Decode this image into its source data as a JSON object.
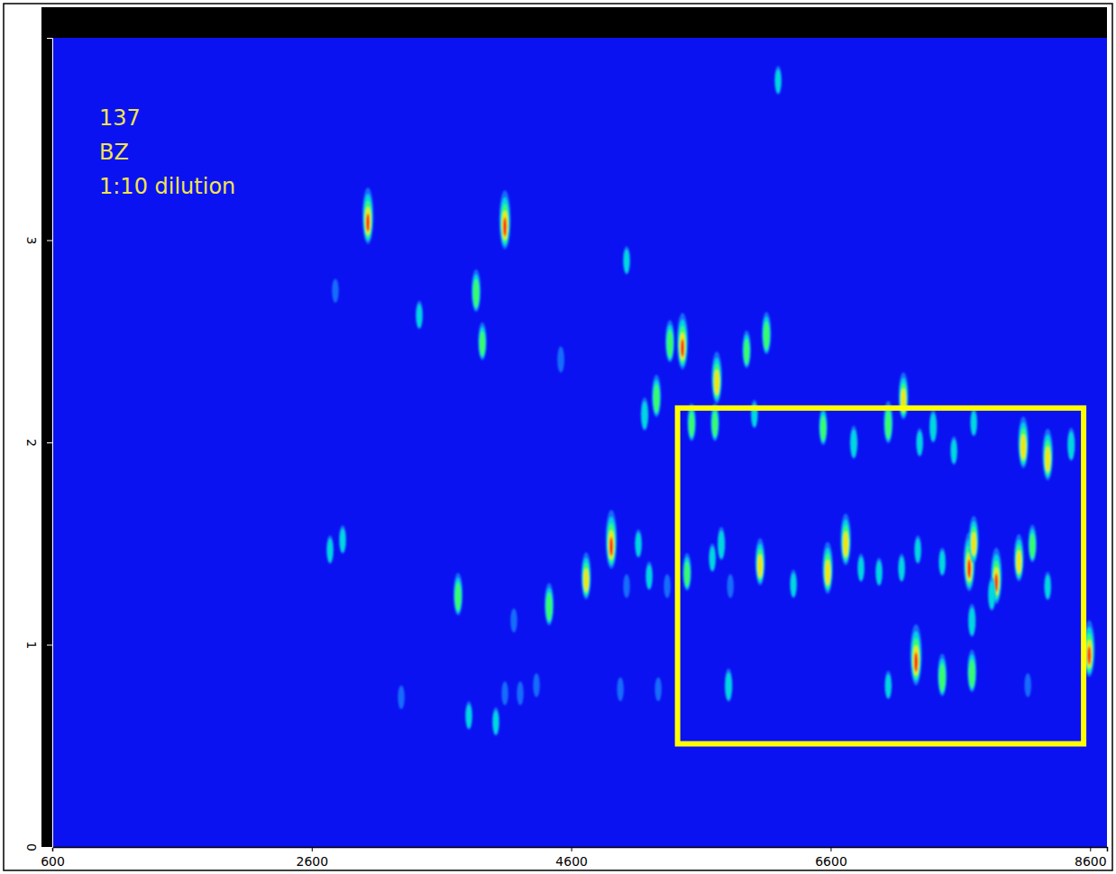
{
  "chart_data": {
    "type": "scatter",
    "annotations": [
      "137",
      "BZ",
      "1:10 dilution"
    ],
    "x": [
      3033,
      4089,
      3867,
      3915,
      3429,
      2782,
      5027,
      6195,
      4520,
      5361,
      5458,
      5257,
      5166,
      5722,
      5952,
      6105,
      7161,
      6542,
      6778,
      7044,
      7390,
      7286,
      8085,
      8273,
      8454,
      5528,
      5708,
      6012,
      7550,
      7703,
      2741,
      2838,
      3728,
      4430,
      4158,
      4715,
      4909,
      5118,
      5201,
      5027,
      5340,
      5493,
      5688,
      5757,
      6056,
      6313,
      6577,
      6716,
      6834,
      6973,
      7147,
      7272,
      7460,
      7668,
      7703,
      7877,
      8051,
      8155,
      8273,
      7842,
      5827,
      7258,
      7460,
      7689,
      7689,
      8593,
      5813,
      7044,
      8120,
      3290,
      3811,
      4019,
      4089,
      4207,
      4332,
      4979,
      5271
    ],
    "y": [
      3.12,
      3.1,
      2.75,
      2.5,
      2.63,
      2.75,
      2.9,
      3.79,
      2.41,
      2.5,
      2.5,
      2.23,
      2.14,
      2.32,
      2.46,
      2.54,
      2.23,
      2.08,
      2.0,
      2.1,
      2.08,
      2.0,
      2.0,
      1.94,
      1.99,
      2.1,
      2.1,
      2.14,
      1.96,
      2.1,
      1.47,
      1.52,
      1.25,
      1.2,
      1.12,
      1.34,
      1.52,
      1.5,
      1.34,
      1.29,
      1.29,
      1.36,
      1.43,
      1.5,
      1.41,
      1.3,
      1.38,
      1.52,
      1.38,
      1.36,
      1.38,
      1.47,
      1.41,
      1.41,
      1.52,
      1.34,
      1.43,
      1.5,
      1.29,
      1.25,
      1.29,
      0.95,
      0.85,
      0.87,
      1.12,
      0.98,
      0.8,
      0.8,
      0.8,
      0.74,
      0.65,
      0.62,
      0.76,
      0.76,
      0.8,
      0.78,
      0.78
    ],
    "z": [
      0.9,
      0.95,
      0.6,
      0.5,
      0.3,
      0.2,
      0.3,
      0.3,
      0.25,
      0.6,
      0.9,
      0.6,
      0.4,
      0.8,
      0.5,
      0.6,
      0.7,
      0.5,
      0.4,
      0.6,
      0.4,
      0.3,
      0.8,
      0.8,
      0.4,
      0.5,
      0.5,
      0.3,
      0.3,
      0.3,
      0.3,
      0.3,
      0.6,
      0.6,
      0.2,
      0.7,
      0.95,
      0.3,
      0.3,
      0.2,
      0.2,
      0.5,
      0.3,
      0.4,
      0.7,
      0.3,
      0.8,
      0.8,
      0.3,
      0.3,
      0.3,
      0.3,
      0.3,
      0.95,
      0.7,
      0.9,
      0.7,
      0.5,
      0.3,
      0.4,
      0.2,
      1.0,
      0.6,
      0.6,
      0.4,
      0.9,
      0.4,
      0.3,
      0.2,
      0.2,
      0.3,
      0.3,
      0.2,
      0.2,
      0.2,
      0.2,
      0.2
    ],
    "zlim": [
      0,
      1
    ],
    "xlim": [
      600,
      8730
    ],
    "ylim": [
      0,
      4.0
    ],
    "xticks": [
      600,
      2600,
      4600,
      6600,
      8600
    ],
    "yticks": [
      0,
      1,
      2,
      3
    ],
    "highlight": {
      "x": [
        5420,
        8550
      ],
      "y": [
        0.51,
        2.17
      ]
    }
  }
}
